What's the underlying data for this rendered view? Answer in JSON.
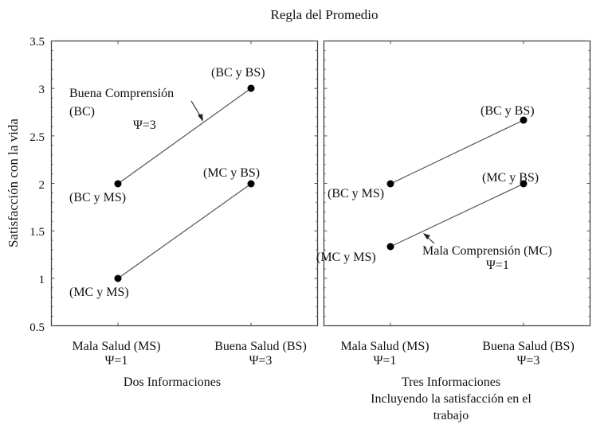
{
  "title": "Regla del Promedio",
  "y_axis_label": "Satisfacción con la vida",
  "y_ticks": [
    "3.5",
    "3",
    "2.5",
    "2",
    "1.5",
    "1",
    "0.5"
  ],
  "panels": [
    {
      "x_labels": [
        {
          "line1": "Mala Salud (MS)",
          "line2": "Ψ=1"
        },
        {
          "line1": "Buena Salud (BS)",
          "line2": "Ψ=3"
        }
      ],
      "caption": [
        "Dos Informaciones"
      ],
      "annotations": {
        "line_label": "Buena Comprensión",
        "line_label2": "(BC)",
        "psi": "Ψ=3"
      },
      "point_labels": [
        "(BC y MS)",
        "(BC y BS)",
        "(MC y MS)",
        "(MC y BS)"
      ]
    },
    {
      "x_labels": [
        {
          "line1": "Mala Salud (MS)",
          "line2": "Ψ=1"
        },
        {
          "line1": "Buena Salud (BS)",
          "line2": "Ψ=3"
        }
      ],
      "caption": [
        "Tres Informaciones",
        "Incluyendo la satisfacción en el",
        "trabajo"
      ],
      "annotations": {
        "line_label": "Mala Comprensión (MC)",
        "psi": "Ψ=1"
      },
      "point_labels": [
        "(BC y MS)",
        "(BC y BS)",
        "(MC y MS)",
        "(MC y BS)"
      ]
    }
  ],
  "chart_data": [
    {
      "type": "line",
      "title": "Regla del Promedio",
      "subtitle": "Dos Informaciones",
      "xlabel": "Dos Informaciones",
      "ylabel": "Satisfacción con la vida",
      "categories": [
        "Mala Salud (MS) Ψ=1",
        "Buena Salud (BS) Ψ=3"
      ],
      "series": [
        {
          "name": "Buena Comprensión (BC) Ψ=3",
          "values": [
            2,
            3
          ],
          "point_labels": [
            "(BC y MS)",
            "(BC y BS)"
          ]
        },
        {
          "name": "Mala Comprensión (MC)",
          "values": [
            1,
            2
          ],
          "point_labels": [
            "(MC y MS)",
            "(MC y BS)"
          ]
        }
      ],
      "ylim": [
        0.5,
        3.5
      ],
      "yticks": [
        0.5,
        1,
        1.5,
        2,
        2.5,
        3,
        3.5
      ],
      "grid": false,
      "legend": "none (inline annotations)"
    },
    {
      "type": "line",
      "title": "Regla del Promedio",
      "subtitle": "Tres Informaciones Incluyendo la satisfacción en el trabajo",
      "xlabel": "Tres Informaciones Incluyendo la satisfacción en el trabajo",
      "ylabel": "Satisfacción con la vida",
      "categories": [
        "Mala Salud (MS) Ψ=1",
        "Buena Salud (BS) Ψ=3"
      ],
      "series": [
        {
          "name": "Buena Comprensión (BC)",
          "values": [
            2,
            2.67
          ],
          "point_labels": [
            "(BC y MS)",
            "(BC y BS)"
          ]
        },
        {
          "name": "Mala Comprensión (MC) Ψ=1",
          "values": [
            1.33,
            2
          ],
          "point_labels": [
            "(MC y MS)",
            "(MC y BS)"
          ]
        }
      ],
      "ylim": [
        0.5,
        3.5
      ],
      "grid": false,
      "legend": "none (inline annotations)"
    }
  ]
}
